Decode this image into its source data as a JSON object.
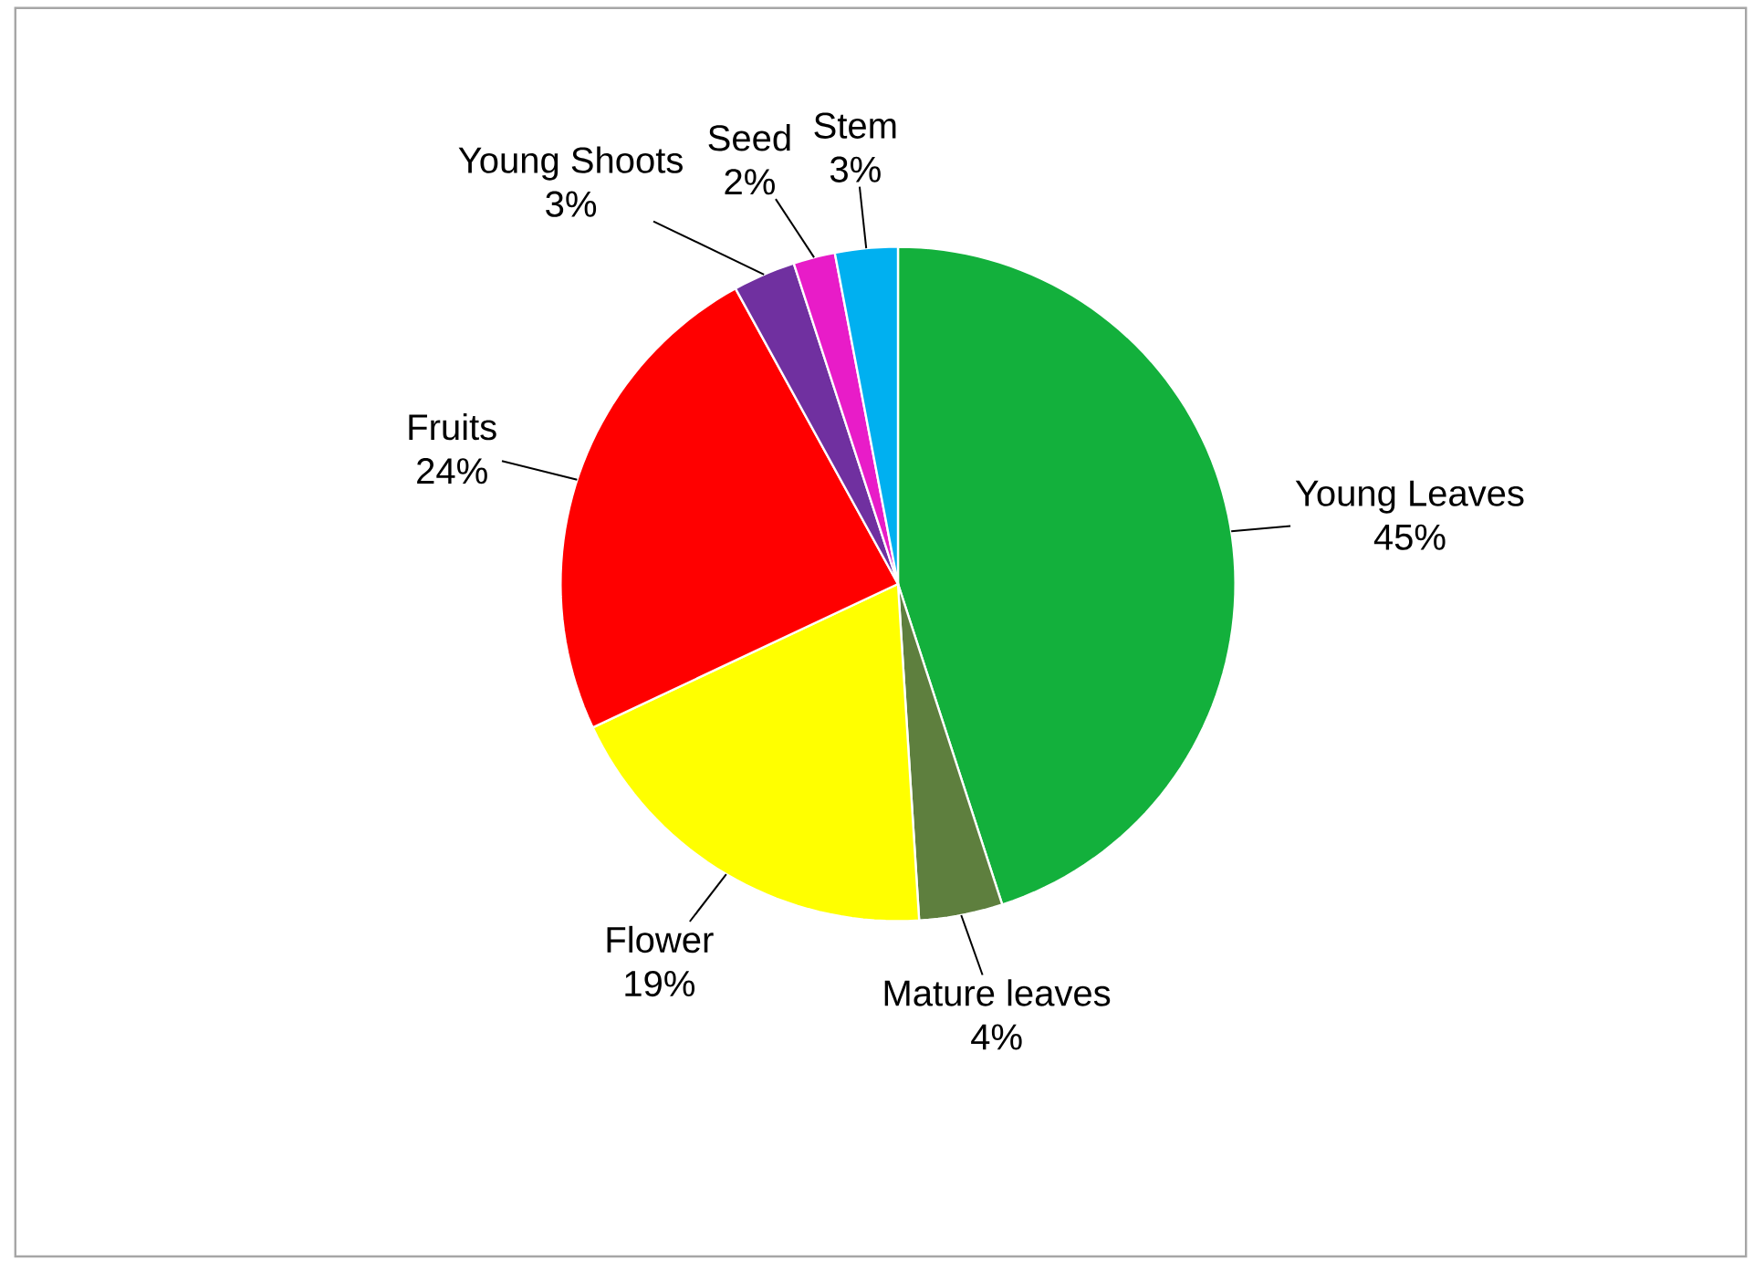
{
  "chart_data": {
    "type": "pie",
    "categories": [
      "Young Leaves",
      "Mature leaves",
      "Flower",
      "Fruits",
      "Young Shoots",
      "Seed",
      "Stem"
    ],
    "values": [
      45,
      4,
      19,
      24,
      3,
      2,
      3
    ],
    "value_labels": [
      "45%",
      "4%",
      "19%",
      "24%",
      "3%",
      "2%",
      "3%"
    ],
    "colors": [
      "#13b03c",
      "#5e7f3e",
      "#ffff00",
      "#ff0000",
      "#7030a0",
      "#e81cc8",
      "#00b0f0"
    ]
  }
}
